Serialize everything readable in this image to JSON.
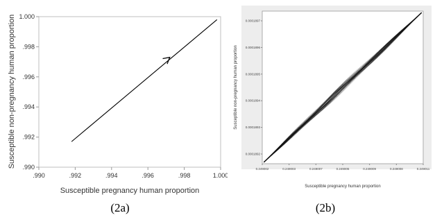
{
  "chart_data": [
    {
      "type": "line",
      "panel_label": "(2a)",
      "title": "",
      "xlabel": "Susceptible pregnancy human proportion",
      "ylabel": "Susceptible non-pregnancy human proportion",
      "xlim": [
        0.99,
        1.0
      ],
      "ylim": [
        0.99,
        1.0
      ],
      "x_tick_labels": [
        ".990",
        ".992",
        ".994",
        ".996",
        ".998",
        "1.000"
      ],
      "y_tick_labels": [
        ".990",
        ".992",
        ".994",
        ".996",
        ".998",
        "1.000"
      ],
      "series": [
        {
          "x": [
            0.9918,
            0.9998
          ],
          "y": [
            0.9917,
            0.9998
          ]
        }
      ],
      "arrow_at": {
        "x": 0.9972,
        "y": 0.9973
      },
      "grid": false
    },
    {
      "type": "line",
      "panel_label": "(2b)",
      "title": "",
      "xlabel": "Susceptible pregnancy human proportion",
      "ylabel": "Susceptible non-pregnancy human proportion",
      "x_tick_labels": [
        "0.249002",
        "0.249003",
        "0.249007",
        "0.249005",
        "0.249009",
        "0.249008",
        "0.249011"
      ],
      "y_tick_labels": [
        "0.0001892",
        "0.0001893",
        "0.0001894",
        "0.0001895",
        "0.0001896",
        "0.0001897"
      ],
      "xlim": [
        0,
        1
      ],
      "ylim": [
        0,
        1
      ],
      "series": [
        {
          "x": [
            0.01,
            0.2,
            0.4,
            0.6,
            0.8,
            0.99
          ],
          "y": [
            0.01,
            0.2,
            0.4,
            0.6,
            0.8,
            0.99
          ]
        }
      ],
      "grid": false
    }
  ]
}
